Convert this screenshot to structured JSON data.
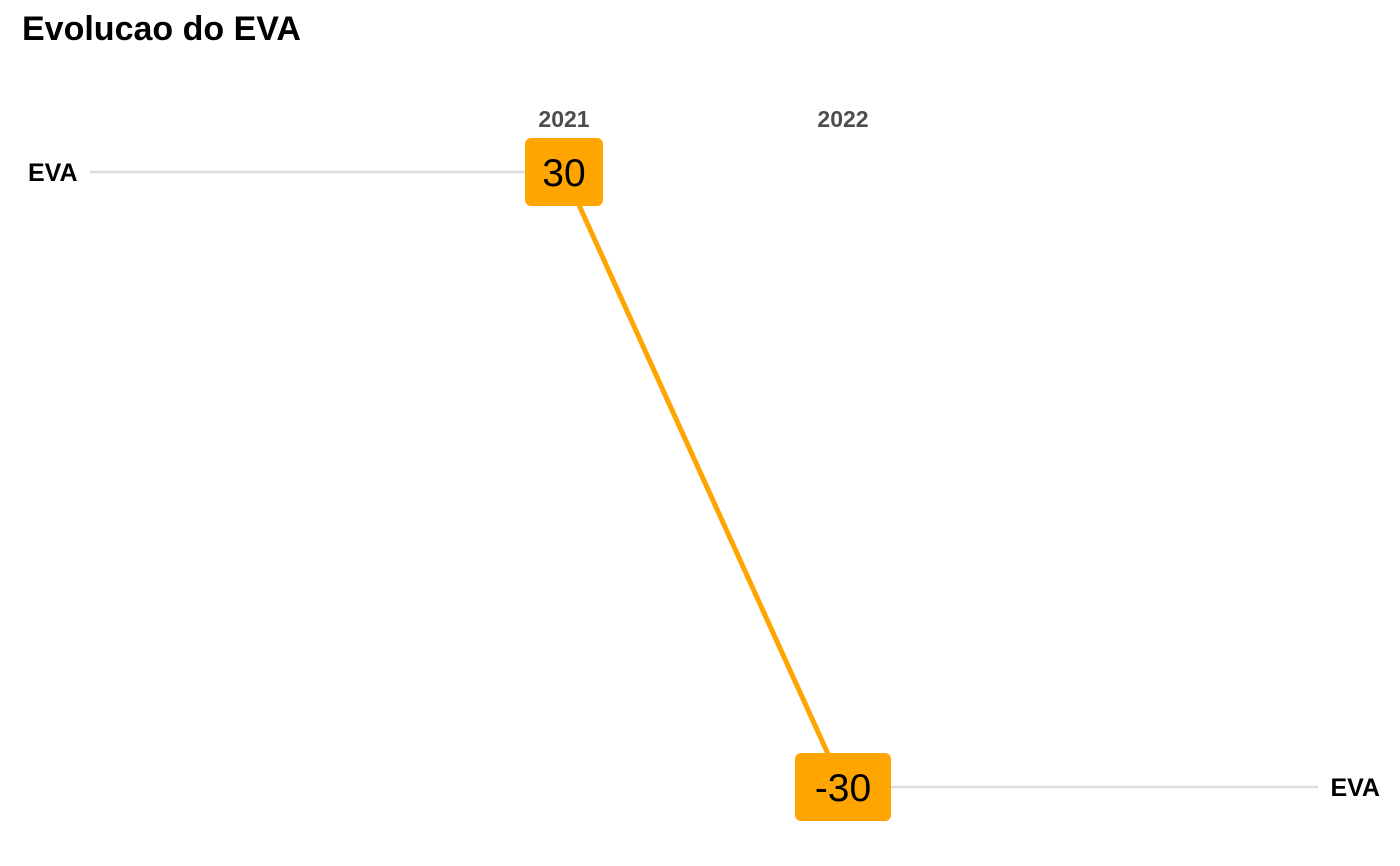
{
  "title": "Evolucao do EVA",
  "chart_data": {
    "type": "line",
    "title": "Evolucao do EVA",
    "x": [
      "2021",
      "2022"
    ],
    "series": [
      {
        "name": "EVA",
        "values": [
          30,
          -30
        ],
        "color": "#FFA500"
      }
    ],
    "ylim": [
      -30,
      30
    ],
    "grid": false,
    "legend": "none",
    "label_color": "#FFA500",
    "guide_color": "#DDDDDD"
  }
}
